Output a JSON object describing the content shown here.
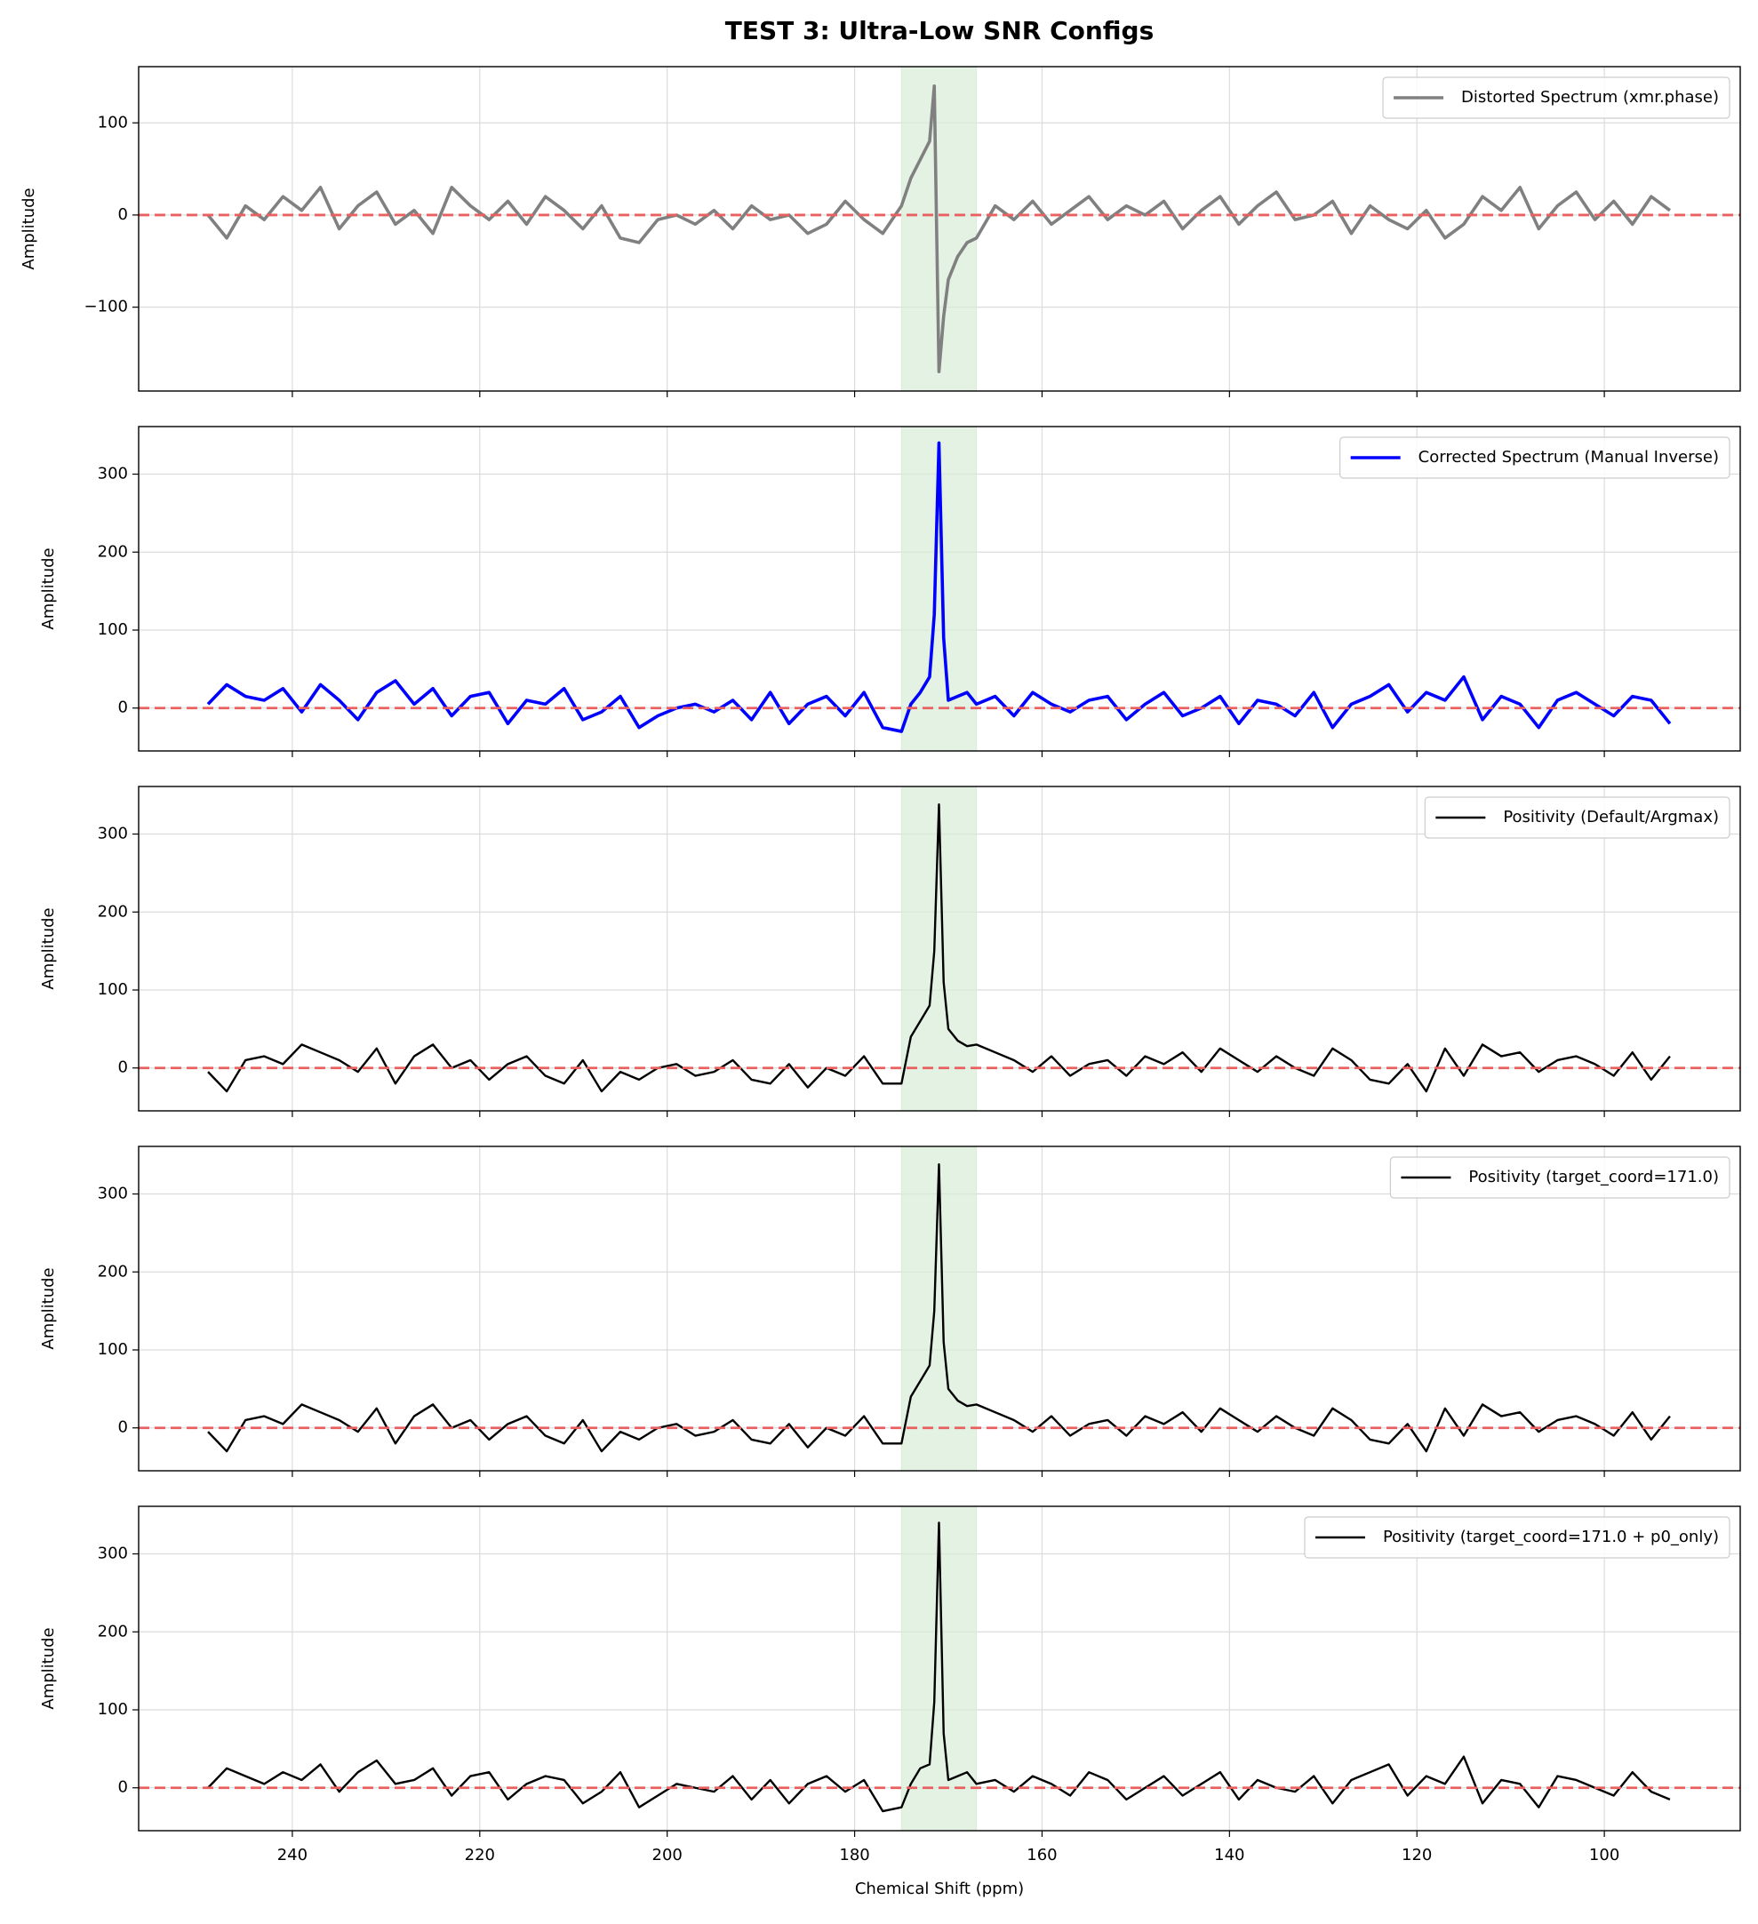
{
  "chart_data": [
    {
      "type": "line",
      "title": "TEST 3: Ultra-Low SNR Configs",
      "ylabel": "Amplitude",
      "legend": "upper right",
      "grid": true,
      "reference_line": 0,
      "reference_color": "#e8605f",
      "highlight_range": [
        175,
        167
      ],
      "highlight_color": "#d8ecd8",
      "xlim": [
        256.4,
        85.5
      ],
      "xticks": [
        240,
        220,
        200,
        180,
        160,
        140,
        120,
        100
      ],
      "ylim": [
        -191,
        161
      ],
      "yticks": [
        {
          "value": -100,
          "label": "−100"
        },
        0,
        100
      ],
      "x": [
        249,
        247,
        245,
        243,
        241,
        239,
        237,
        235,
        233,
        231,
        229,
        227,
        225,
        223,
        221,
        219,
        217,
        215,
        213,
        211,
        209,
        207,
        205,
        203,
        201,
        199,
        197,
        195,
        193,
        191,
        189,
        187,
        185,
        183,
        181,
        179,
        177,
        175,
        174,
        173,
        172,
        171.5,
        171,
        170.5,
        170,
        169,
        168,
        167,
        165,
        163,
        161,
        159,
        157,
        155,
        153,
        151,
        149,
        147,
        145,
        143,
        141,
        139,
        137,
        135,
        133,
        131,
        129,
        127,
        125,
        123,
        121,
        119,
        117,
        115,
        113,
        111,
        109,
        107,
        105,
        103,
        101,
        99,
        97,
        95,
        93
      ],
      "series": [
        {
          "name": "Distorted Spectrum (xmr.phase)",
          "color": "#808080",
          "values": [
            0,
            -25,
            10,
            -5,
            20,
            5,
            30,
            -15,
            10,
            25,
            -10,
            5,
            -20,
            30,
            10,
            -5,
            15,
            -10,
            20,
            5,
            -15,
            10,
            -25,
            -30,
            -5,
            0,
            -10,
            5,
            -15,
            10,
            -5,
            0,
            -20,
            -10,
            15,
            -5,
            -20,
            10,
            40,
            60,
            80,
            140,
            -170,
            -110,
            -70,
            -45,
            -30,
            -25,
            10,
            -5,
            15,
            -10,
            5,
            20,
            -5,
            10,
            0,
            15,
            -15,
            5,
            20,
            -10,
            10,
            25,
            -5,
            0,
            15,
            -20,
            10,
            -5,
            -15,
            5,
            -25,
            -10,
            20,
            5,
            30,
            -15,
            10,
            25,
            -5,
            15,
            -10,
            20,
            5
          ]
        }
      ]
    },
    {
      "type": "line",
      "ylabel": "Amplitude",
      "legend": "upper right",
      "grid": true,
      "reference_line": 0,
      "reference_color": "#e8605f",
      "highlight_range": [
        175,
        167
      ],
      "highlight_color": "#d8ecd8",
      "xlim": [
        256.4,
        85.5
      ],
      "xticks": [
        240,
        220,
        200,
        180,
        160,
        140,
        120,
        100
      ],
      "ylim": [
        -55,
        361
      ],
      "yticks": [
        0,
        100,
        200,
        300
      ],
      "x": [
        249,
        247,
        245,
        243,
        241,
        239,
        237,
        235,
        233,
        231,
        229,
        227,
        225,
        223,
        221,
        219,
        217,
        215,
        213,
        211,
        209,
        207,
        205,
        203,
        201,
        199,
        197,
        195,
        193,
        191,
        189,
        187,
        185,
        183,
        181,
        179,
        177,
        175,
        174,
        173,
        172,
        171.5,
        171,
        170.5,
        170,
        169,
        168,
        167,
        165,
        163,
        161,
        159,
        157,
        155,
        153,
        151,
        149,
        147,
        145,
        143,
        141,
        139,
        137,
        135,
        133,
        131,
        129,
        127,
        125,
        123,
        121,
        119,
        117,
        115,
        113,
        111,
        109,
        107,
        105,
        103,
        101,
        99,
        97,
        95,
        93
      ],
      "series": [
        {
          "name": "Corrected Spectrum (Manual Inverse)",
          "color": "#0000ff",
          "values": [
            5,
            30,
            15,
            10,
            25,
            -5,
            30,
            10,
            -15,
            20,
            35,
            5,
            25,
            -10,
            15,
            20,
            -20,
            10,
            5,
            25,
            -15,
            -5,
            15,
            -25,
            -10,
            0,
            5,
            -5,
            10,
            -15,
            20,
            -20,
            5,
            15,
            -10,
            20,
            -25,
            -30,
            5,
            20,
            40,
            120,
            340,
            90,
            10,
            15,
            20,
            5,
            15,
            -10,
            20,
            5,
            -5,
            10,
            15,
            -15,
            5,
            20,
            -10,
            0,
            15,
            -20,
            10,
            5,
            -10,
            20,
            -25,
            5,
            15,
            30,
            -5,
            20,
            10,
            40,
            -15,
            15,
            5,
            -25,
            10,
            20,
            5,
            -10,
            15,
            10,
            -20
          ]
        }
      ]
    },
    {
      "type": "line",
      "ylabel": "Amplitude",
      "legend": "upper right",
      "grid": true,
      "reference_line": 0,
      "reference_color": "#e8605f",
      "highlight_range": [
        175,
        167
      ],
      "highlight_color": "#d8ecd8",
      "xlim": [
        256.4,
        85.5
      ],
      "xticks": [
        240,
        220,
        200,
        180,
        160,
        140,
        120,
        100
      ],
      "ylim": [
        -55,
        361
      ],
      "yticks": [
        0,
        100,
        200,
        300
      ],
      "x": [
        249,
        247,
        245,
        243,
        241,
        239,
        237,
        235,
        233,
        231,
        229,
        227,
        225,
        223,
        221,
        219,
        217,
        215,
        213,
        211,
        209,
        207,
        205,
        203,
        201,
        199,
        197,
        195,
        193,
        191,
        189,
        187,
        185,
        183,
        181,
        179,
        177,
        175,
        174,
        173,
        172,
        171.5,
        171,
        170.5,
        170,
        169,
        168,
        167,
        165,
        163,
        161,
        159,
        157,
        155,
        153,
        151,
        149,
        147,
        145,
        143,
        141,
        139,
        137,
        135,
        133,
        131,
        129,
        127,
        125,
        123,
        121,
        119,
        117,
        115,
        113,
        111,
        109,
        107,
        105,
        103,
        101,
        99,
        97,
        95,
        93
      ],
      "series": [
        {
          "name": "Positivity (Default/Argmax)",
          "color": "#000000",
          "values": [
            -5,
            -30,
            10,
            15,
            5,
            30,
            20,
            10,
            -5,
            25,
            -20,
            15,
            30,
            0,
            10,
            -15,
            5,
            15,
            -10,
            -20,
            10,
            -30,
            -5,
            -15,
            0,
            5,
            -10,
            -5,
            10,
            -15,
            -20,
            5,
            -25,
            0,
            -10,
            15,
            -20,
            -20,
            40,
            60,
            80,
            150,
            338,
            110,
            50,
            35,
            28,
            30,
            20,
            10,
            -5,
            15,
            -10,
            5,
            10,
            -10,
            15,
            5,
            20,
            -5,
            25,
            10,
            -5,
            15,
            0,
            -10,
            25,
            10,
            -15,
            -20,
            5,
            -30,
            25,
            -10,
            30,
            15,
            20,
            -5,
            10,
            15,
            5,
            -10,
            20,
            -15,
            15
          ]
        }
      ]
    },
    {
      "type": "line",
      "ylabel": "Amplitude",
      "legend": "upper right",
      "grid": true,
      "reference_line": 0,
      "reference_color": "#e8605f",
      "highlight_range": [
        175,
        167
      ],
      "highlight_color": "#d8ecd8",
      "xlim": [
        256.4,
        85.5
      ],
      "xticks": [
        240,
        220,
        200,
        180,
        160,
        140,
        120,
        100
      ],
      "ylim": [
        -55,
        361
      ],
      "yticks": [
        0,
        100,
        200,
        300
      ],
      "x": [
        249,
        247,
        245,
        243,
        241,
        239,
        237,
        235,
        233,
        231,
        229,
        227,
        225,
        223,
        221,
        219,
        217,
        215,
        213,
        211,
        209,
        207,
        205,
        203,
        201,
        199,
        197,
        195,
        193,
        191,
        189,
        187,
        185,
        183,
        181,
        179,
        177,
        175,
        174,
        173,
        172,
        171.5,
        171,
        170.5,
        170,
        169,
        168,
        167,
        165,
        163,
        161,
        159,
        157,
        155,
        153,
        151,
        149,
        147,
        145,
        143,
        141,
        139,
        137,
        135,
        133,
        131,
        129,
        127,
        125,
        123,
        121,
        119,
        117,
        115,
        113,
        111,
        109,
        107,
        105,
        103,
        101,
        99,
        97,
        95,
        93
      ],
      "series": [
        {
          "name": "Positivity (target_coord=171.0)",
          "color": "#000000",
          "values": [
            -5,
            -30,
            10,
            15,
            5,
            30,
            20,
            10,
            -5,
            25,
            -20,
            15,
            30,
            0,
            10,
            -15,
            5,
            15,
            -10,
            -20,
            10,
            -30,
            -5,
            -15,
            0,
            5,
            -10,
            -5,
            10,
            -15,
            -20,
            5,
            -25,
            0,
            -10,
            15,
            -20,
            -20,
            40,
            60,
            80,
            150,
            338,
            110,
            50,
            35,
            28,
            30,
            20,
            10,
            -5,
            15,
            -10,
            5,
            10,
            -10,
            15,
            5,
            20,
            -5,
            25,
            10,
            -5,
            15,
            0,
            -10,
            25,
            10,
            -15,
            -20,
            5,
            -30,
            25,
            -10,
            30,
            15,
            20,
            -5,
            10,
            15,
            5,
            -10,
            20,
            -15,
            15
          ]
        }
      ]
    },
    {
      "type": "line",
      "ylabel": "Amplitude",
      "xlabel": "Chemical Shift (ppm)",
      "legend": "upper right",
      "grid": true,
      "reference_line": 0,
      "reference_color": "#e8605f",
      "highlight_range": [
        175,
        167
      ],
      "highlight_color": "#d8ecd8",
      "xlim": [
        256.4,
        85.5
      ],
      "xticks": [
        240,
        220,
        200,
        180,
        160,
        140,
        120,
        100
      ],
      "ylim": [
        -55,
        361
      ],
      "yticks": [
        0,
        100,
        200,
        300
      ],
      "x": [
        249,
        247,
        245,
        243,
        241,
        239,
        237,
        235,
        233,
        231,
        229,
        227,
        225,
        223,
        221,
        219,
        217,
        215,
        213,
        211,
        209,
        207,
        205,
        203,
        201,
        199,
        197,
        195,
        193,
        191,
        189,
        187,
        185,
        183,
        181,
        179,
        177,
        175,
        174,
        173,
        172,
        171.5,
        171,
        170.5,
        170,
        169,
        168,
        167,
        165,
        163,
        161,
        159,
        157,
        155,
        153,
        151,
        149,
        147,
        145,
        143,
        141,
        139,
        137,
        135,
        133,
        131,
        129,
        127,
        125,
        123,
        121,
        119,
        117,
        115,
        113,
        111,
        109,
        107,
        105,
        103,
        101,
        99,
        97,
        95,
        93
      ],
      "series": [
        {
          "name": "Positivity (target_coord=171.0 + p0_only)",
          "color": "#000000",
          "values": [
            0,
            25,
            15,
            5,
            20,
            10,
            30,
            -5,
            20,
            35,
            5,
            10,
            25,
            -10,
            15,
            20,
            -15,
            5,
            15,
            10,
            -20,
            -5,
            20,
            -25,
            -10,
            5,
            0,
            -5,
            15,
            -15,
            10,
            -20,
            5,
            15,
            -5,
            10,
            -30,
            -25,
            5,
            25,
            30,
            110,
            340,
            70,
            10,
            15,
            20,
            5,
            10,
            -5,
            15,
            5,
            -10,
            20,
            10,
            -15,
            0,
            15,
            -10,
            5,
            20,
            -15,
            10,
            0,
            -5,
            15,
            -20,
            10,
            20,
            30,
            -10,
            15,
            5,
            40,
            -20,
            10,
            5,
            -25,
            15,
            10,
            0,
            -10,
            20,
            -5,
            -15
          ]
        }
      ]
    }
  ]
}
